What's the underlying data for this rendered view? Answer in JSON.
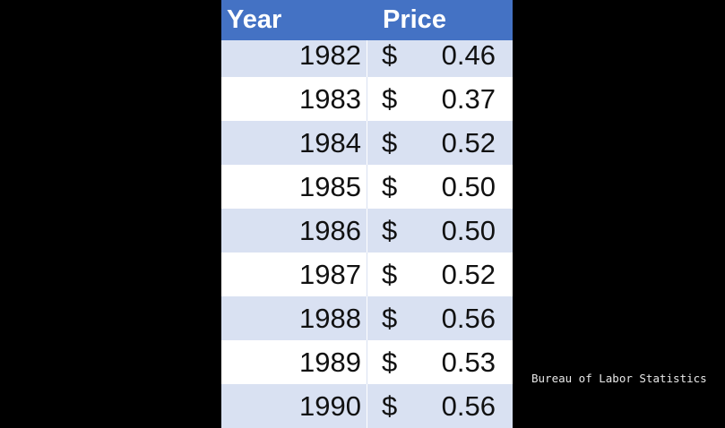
{
  "table": {
    "header": [
      "Year",
      "Price"
    ],
    "rows": [
      [
        "1982",
        "$",
        "0.46"
      ],
      [
        "1983",
        "$",
        "0.37"
      ],
      [
        "1984",
        "$",
        "0.52"
      ],
      [
        "1985",
        "$",
        "0.50"
      ],
      [
        "1986",
        "$",
        "0.50"
      ],
      [
        "1987",
        "$",
        "0.52"
      ],
      [
        "1988",
        "$",
        "0.56"
      ],
      [
        "1989",
        "$",
        "0.53"
      ],
      [
        "1990",
        "$",
        "0.56"
      ]
    ]
  },
  "source": "Bureau of Labor Statistics"
}
